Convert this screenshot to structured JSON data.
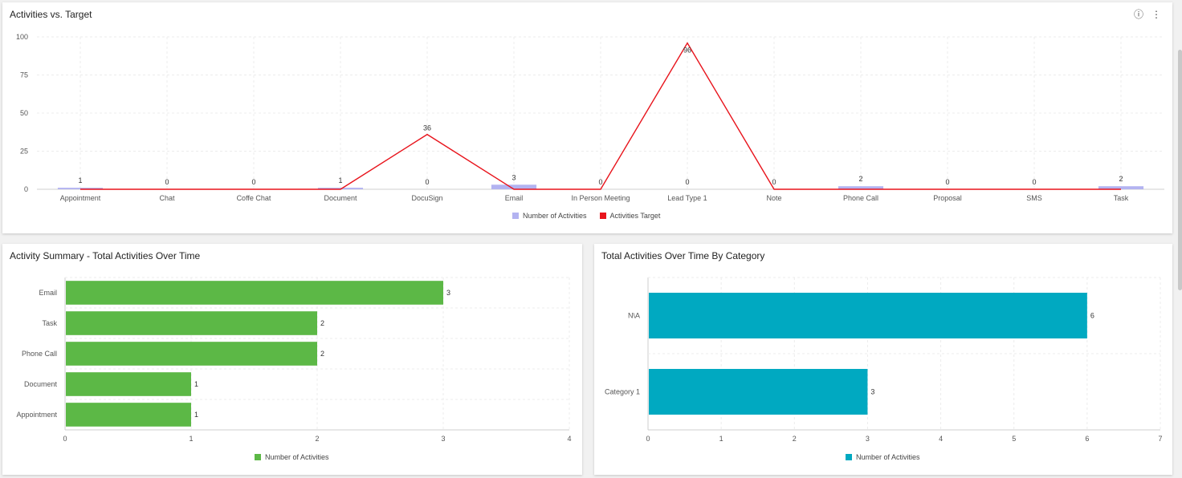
{
  "colors": {
    "activities_bar": "#b3b3f1",
    "target_line": "#e8141c",
    "summary_bar": "#5cb846",
    "category_bar": "#00a9c1"
  },
  "top_card": {
    "title": "Activities vs. Target",
    "icons": [
      "info-icon",
      "more-vertical-icon"
    ],
    "info_glyph": "ⓘ",
    "more_glyph": "⋮"
  },
  "chart_data": [
    {
      "type": "bar",
      "title": "Activities vs. Target",
      "categories": [
        "Appointment",
        "Chat",
        "Coffe Chat",
        "Document",
        "DocuSign",
        "Email",
        "In Person Meeting",
        "Lead Type 1",
        "Note",
        "Phone Call",
        "Proposal",
        "SMS",
        "Task"
      ],
      "series": [
        {
          "name": "Number of Activities",
          "type": "bar",
          "values": [
            1,
            0,
            0,
            1,
            0,
            3,
            0,
            0,
            0,
            2,
            0,
            0,
            2
          ]
        },
        {
          "name": "Activities Target",
          "type": "line",
          "values": [
            0,
            0,
            0,
            0,
            36,
            0,
            0,
            96,
            0,
            0,
            0,
            0,
            0
          ]
        }
      ],
      "data_labels": [
        "1",
        "0",
        "0",
        "1",
        "0",
        "3",
        "0",
        "0",
        "0",
        "2",
        "0",
        "0",
        "2"
      ],
      "target_labels": {
        "4": "36",
        "7": "96"
      },
      "yticks": [
        "0",
        "25",
        "50",
        "75",
        "100"
      ],
      "ylim": [
        0,
        100
      ],
      "grid": true,
      "legend": "bottom"
    },
    {
      "type": "bar",
      "orientation": "horizontal",
      "title": "Activity Summary - Total Activities Over Time",
      "categories": [
        "Email",
        "Task",
        "Phone Call",
        "Document",
        "Appointment"
      ],
      "series": [
        {
          "name": "Number of Activities",
          "values": [
            3,
            2,
            2,
            1,
            1
          ]
        }
      ],
      "data_labels": [
        "3",
        "2",
        "2",
        "1",
        "1"
      ],
      "xticks": [
        "0",
        "1",
        "2",
        "3",
        "4"
      ],
      "xlim": [
        0,
        4
      ],
      "grid": true,
      "legend": "bottom"
    },
    {
      "type": "bar",
      "orientation": "horizontal",
      "title": "Total Activities Over Time By Category",
      "categories": [
        "N\\A",
        "Category 1"
      ],
      "series": [
        {
          "name": "Number of Activities",
          "values": [
            6,
            3
          ]
        }
      ],
      "data_labels": [
        "6",
        "3"
      ],
      "xticks": [
        "0",
        "1",
        "2",
        "3",
        "4",
        "5",
        "6",
        "7"
      ],
      "xlim": [
        0,
        7
      ],
      "grid": true,
      "legend": "bottom"
    }
  ]
}
